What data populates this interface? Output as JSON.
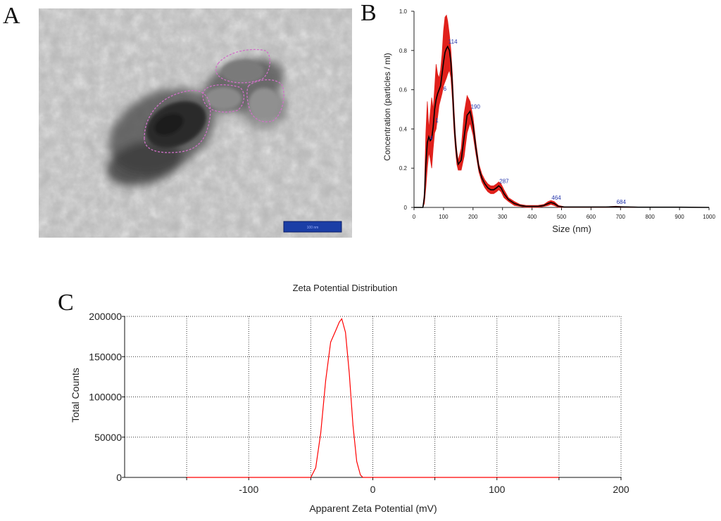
{
  "panels": {
    "a": "A",
    "b": "B",
    "c": "C"
  },
  "tem_image": {
    "scale_bar_text": "100 nm"
  },
  "chart_data": [
    {
      "type": "line",
      "panel": "B",
      "xlabel": "Size (nm)",
      "ylabel": "Concentration (particles / ml)",
      "xlim": [
        0,
        1000
      ],
      "ylim": [
        0,
        1.0
      ],
      "x_ticks": [
        "0",
        "100",
        "200",
        "300",
        "400",
        "500",
        "600",
        "700",
        "800",
        "900",
        "1000"
      ],
      "y_ticks": [
        "0",
        "0.2",
        "0.4",
        "0.6",
        "0.8",
        "1.0"
      ],
      "grid": false,
      "series": [
        {
          "color": "#000000",
          "x": [
            0,
            30,
            35,
            40,
            45,
            50,
            55,
            60,
            65,
            70,
            75,
            80,
            85,
            90,
            95,
            100,
            105,
            110,
            114,
            120,
            125,
            130,
            135,
            140,
            145,
            150,
            160,
            170,
            180,
            190,
            200,
            210,
            220,
            230,
            240,
            250,
            260,
            270,
            280,
            287,
            295,
            305,
            320,
            340,
            360,
            380,
            400,
            420,
            440,
            455,
            464,
            475,
            490,
            510,
            550,
            600,
            650,
            684,
            700,
            730,
            760,
            800,
            900,
            1000
          ],
          "y": [
            0,
            0,
            0.05,
            0.22,
            0.33,
            0.36,
            0.34,
            0.35,
            0.41,
            0.5,
            0.55,
            0.58,
            0.6,
            0.62,
            0.68,
            0.74,
            0.79,
            0.81,
            0.82,
            0.8,
            0.74,
            0.62,
            0.46,
            0.34,
            0.26,
            0.22,
            0.24,
            0.36,
            0.47,
            0.49,
            0.42,
            0.3,
            0.2,
            0.15,
            0.12,
            0.1,
            0.09,
            0.09,
            0.1,
            0.11,
            0.1,
            0.07,
            0.04,
            0.02,
            0.01,
            0.005,
            0.005,
            0.005,
            0.01,
            0.02,
            0.025,
            0.02,
            0.005,
            0.002,
            0.002,
            0.002,
            0.002,
            0.004,
            0.003,
            0.002,
            0.001,
            0.001,
            0.001,
            0.0
          ]
        },
        {
          "color": "#e0201b",
          "x": [
            0,
            30,
            35,
            40,
            45,
            50,
            55,
            60,
            65,
            70,
            75,
            80,
            85,
            90,
            95,
            100,
            105,
            110,
            114,
            120,
            125,
            130,
            135,
            140,
            145,
            150,
            160,
            170,
            180,
            190,
            200,
            210,
            220,
            230,
            240,
            250,
            260,
            270,
            280,
            287,
            295,
            305,
            320,
            340,
            360,
            380,
            400,
            420,
            440,
            455,
            464,
            475,
            490,
            510,
            550,
            600,
            650,
            684,
            700,
            730,
            760,
            800,
            900,
            1000
          ],
          "y_upper": [
            0,
            0,
            0.08,
            0.38,
            0.54,
            0.4,
            0.48,
            0.56,
            0.5,
            0.61,
            0.73,
            0.68,
            0.66,
            0.7,
            0.78,
            0.9,
            0.97,
            0.98,
            0.95,
            0.88,
            0.8,
            0.68,
            0.52,
            0.38,
            0.29,
            0.24,
            0.3,
            0.48,
            0.57,
            0.54,
            0.46,
            0.33,
            0.22,
            0.17,
            0.14,
            0.12,
            0.11,
            0.11,
            0.12,
            0.13,
            0.12,
            0.09,
            0.05,
            0.03,
            0.015,
            0.01,
            0.01,
            0.01,
            0.015,
            0.03,
            0.035,
            0.03,
            0.01,
            0.003,
            0.003,
            0.003,
            0.003,
            0.006,
            0.005,
            0.003,
            0.002,
            0.002,
            0.002,
            0.0
          ],
          "y_lower": [
            0,
            0,
            0.02,
            0.1,
            0.2,
            0.28,
            0.25,
            0.2,
            0.3,
            0.38,
            0.4,
            0.46,
            0.52,
            0.55,
            0.58,
            0.62,
            0.64,
            0.66,
            0.68,
            0.7,
            0.66,
            0.55,
            0.4,
            0.3,
            0.22,
            0.19,
            0.19,
            0.26,
            0.38,
            0.43,
            0.37,
            0.27,
            0.18,
            0.13,
            0.1,
            0.08,
            0.07,
            0.07,
            0.08,
            0.09,
            0.08,
            0.05,
            0.03,
            0.01,
            0.005,
            0.0,
            0.0,
            0.0,
            0.005,
            0.01,
            0.015,
            0.01,
            0.0,
            0.0,
            0.0,
            0.0,
            0.0,
            0.002,
            0.001,
            0.0,
            0.0,
            0.0,
            0.0,
            0.0
          ]
        }
      ],
      "peak_labels": [
        {
          "text": "114",
          "x": 114,
          "y": 0.82
        },
        {
          "text": "190",
          "x": 190,
          "y": 0.49
        },
        {
          "text": "287",
          "x": 287,
          "y": 0.11
        },
        {
          "text": "464",
          "x": 464,
          "y": 0.025
        },
        {
          "text": "684",
          "x": 684,
          "y": 0.004
        },
        {
          "text": "6",
          "x": 97,
          "y": 0.58
        },
        {
          "text": "1",
          "x": 70,
          "y": 0.42
        },
        {
          "text": "4",
          "x": 50,
          "y": 0.33
        }
      ]
    },
    {
      "type": "line",
      "panel": "C",
      "title": "Zeta Potential Distribution",
      "xlabel": "Apparent Zeta Potential (mV)",
      "ylabel": "Total Counts",
      "xlim": [
        -200,
        200
      ],
      "ylim": [
        0,
        200000
      ],
      "x_ticks": [
        "-100",
        "0",
        "100",
        "200"
      ],
      "x_tick_values": [
        -100,
        0,
        100,
        200
      ],
      "y_ticks": [
        "0",
        "50000",
        "100000",
        "150000",
        "200000"
      ],
      "y_tick_values": [
        0,
        50000,
        100000,
        150000,
        200000
      ],
      "grid": true,
      "series": [
        {
          "color": "#ff0000",
          "x": [
            -150,
            -50,
            -46,
            -42,
            -38,
            -34,
            -30,
            -27,
            -25,
            -22,
            -19,
            -16,
            -13,
            -10,
            -8,
            150
          ],
          "y": [
            0,
            0,
            12000,
            55000,
            120000,
            168000,
            182000,
            193000,
            197000,
            180000,
            130000,
            65000,
            20000,
            3000,
            0,
            0
          ]
        }
      ]
    }
  ]
}
